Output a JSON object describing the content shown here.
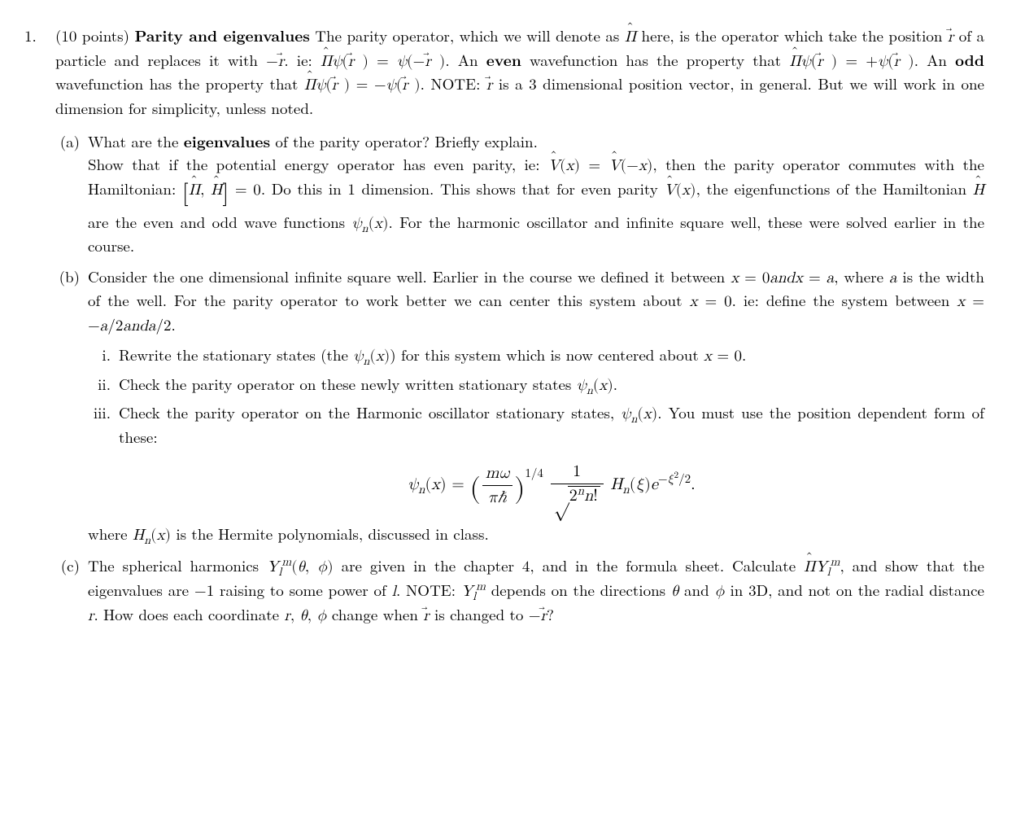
{
  "problem": {
    "number": "1.",
    "points": "(10 points)",
    "title_bold": "Parity and eigenvalues",
    "intro_1": "The parity operator, which we will denote as ",
    "intro_2": " here, is the operator which take the position ",
    "intro_3": " of a particle and replaces it with ",
    "intro_4": ". ie: ",
    "intro_5": ". An ",
    "even": "even",
    "intro_6": " wavefunction has the property that ",
    "intro_7": ". An ",
    "odd": "odd",
    "intro_8": " wavefunction has the property that ",
    "intro_9": ". NOTE: ",
    "intro_10": " is a 3 dimensional position vector, in general. But we will work in one dimension for simplicity, unless noted."
  },
  "a": {
    "label": "(a)",
    "q1": "What are the ",
    "q1b": "eigenvalues",
    "q1c": " of the parity operator? Briefly explain.",
    "p2a": "Show that if the potential energy operator has even parity, ie: ",
    "p2b": ", then the parity operator commutes with the Hamiltonian: ",
    "p2c": ". Do this in 1 dimension. This shows that for even parity ",
    "p2d": ", the eigenfunctions of the Hamiltonian ",
    "p2e": " are the even and odd wave functions ",
    "p2f": ". For the harmonic oscillator and infinite square well, these were solved earlier in the course."
  },
  "b": {
    "label": "(b)",
    "p1a": "Consider the one dimensional infinite square well. Earlier in the course we defined it between ",
    "p1b": ", where ",
    "p1c": " is the width of the well. For the parity operator to work better we can center this system about ",
    "p1d": ". ie: define the system between ",
    "p1e": ".",
    "x0a": "x = 0 and x = a",
    "i": {
      "label": "i.",
      "t1": "Rewrite the stationary states (the ",
      "t2": ") for this system which is now centered about ",
      "t3": "."
    },
    "ii": {
      "label": "ii.",
      "t": "Check the parity operator on these newly written stationary states "
    },
    "iii": {
      "label": "iii.",
      "t1": "Check the parity operator on the Harmonic oscillator stationary states, ",
      "t2": ". You must use the position dependent form of these:",
      "after": "where ",
      "after2": " is the Hermite polynomials, discussed in class."
    }
  },
  "c": {
    "label": "(c)",
    "t1": "The spherical harmonics ",
    "t2": " are given in the chapter 4, and in the formula sheet. Calculate ",
    "t3": ", and show that the eigenvalues are ",
    "t4": " raising to some power of ",
    "t5": ". NOTE: ",
    "t6": " depends on the directions ",
    "t7": " and ",
    "t8": " in 3D, and not on the radial distance ",
    "t9": ". How does each coordinate ",
    "t10": " change when ",
    "t11": " is changed to ",
    "t12": "?"
  },
  "sym": {
    "Pi": "Π",
    "H": "H",
    "V": "V",
    "r": "r",
    "psi": "ψ",
    "x": "x",
    "a": "a",
    "n": "n",
    "l": "l",
    "m": "m",
    "theta": "θ",
    "phi": "ϕ",
    "xi": "ξ",
    "omega": "ω",
    "hbar": "ℏ",
    "pi": "π",
    "Y": "Y",
    "minus1": "−1",
    "minus": "−",
    "plus": "+",
    "eq": "=",
    "zero": "0",
    "comma": ",",
    "dot": ".",
    "qtr": "1/4",
    "two": "2",
    "bang": "!",
    "one": "1",
    "H_n": "H",
    "e": "e",
    "slash": "/",
    "and": " and ",
    "minus_a2": "−a/2 and a/2",
    "mw": "mω"
  }
}
